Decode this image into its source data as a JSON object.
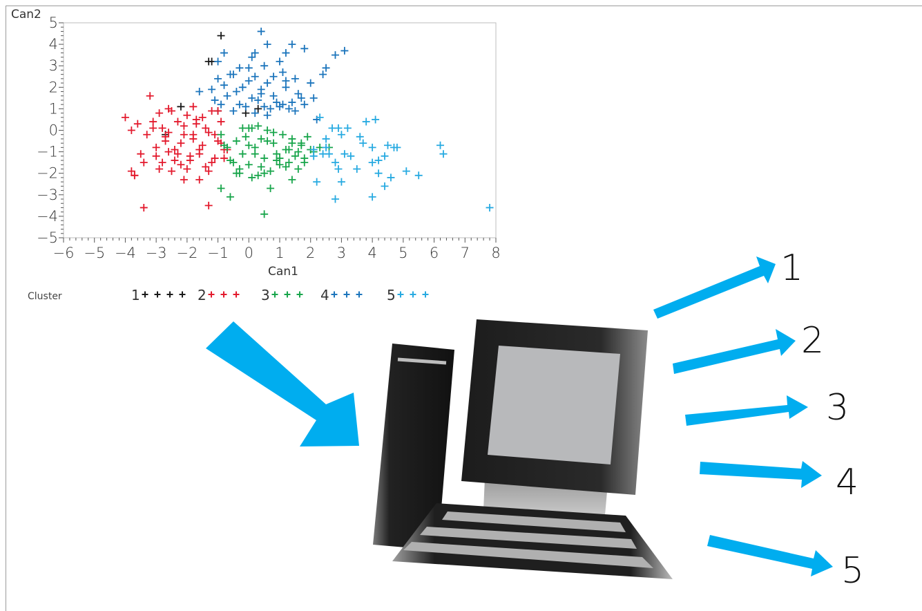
{
  "chart_data": {
    "type": "scatter",
    "xlabel": "Can1",
    "ylabel": "Can2",
    "xlim": [
      -6,
      8
    ],
    "ylim": [
      -5,
      5
    ],
    "xticks": [
      "-6",
      "-5",
      "-4",
      "-3",
      "-2",
      "-1",
      "0",
      "1",
      "2",
      "3",
      "4",
      "5",
      "6",
      "7",
      "8"
    ],
    "yticks": [
      "5",
      "4",
      "3",
      "2",
      "1",
      "0",
      "-1",
      "-2",
      "-3",
      "-4",
      "-5"
    ],
    "marker": "+",
    "legend": {
      "title": "Cluster",
      "placement": "below"
    },
    "series": [
      {
        "name": "1",
        "color": "#1a1a1a",
        "x": [
          -0.9,
          -1.3,
          -1.2,
          -2.2,
          -0.1,
          0.3,
          -1.0,
          -2.7
        ],
        "y": [
          4.4,
          3.2,
          3.2,
          1.1,
          0.8,
          1.0,
          0.9,
          -0.2
        ]
      },
      {
        "name": "2",
        "color": "#e31a2d",
        "x": [
          -4.0,
          -3.8,
          -3.6,
          -3.3,
          -3.1,
          -3.0,
          -2.9,
          -2.8,
          -2.7,
          -2.6,
          -2.5,
          -2.4,
          -2.3,
          -2.2,
          -2.1,
          -2.0,
          -1.9,
          -1.8,
          -1.7,
          -1.6,
          -1.5,
          -1.4,
          -1.3,
          -1.2,
          -1.1,
          -1.0,
          -0.9,
          -0.8,
          -3.7,
          -3.5,
          -3.4,
          -3.2,
          -2.9,
          -2.7,
          -2.5,
          -2.3,
          -2.1,
          -1.9,
          -1.7,
          -1.5,
          -1.3,
          -1.1,
          -0.9,
          -0.7,
          -3.0,
          -2.8,
          -2.6,
          -2.4,
          -2.2,
          -2.0,
          -1.8,
          -1.6,
          -1.4,
          -1.2,
          -1.0,
          -0.8,
          -3.8,
          -3.7,
          -3.4,
          -2.1,
          -1.6,
          -1.3,
          -1.8,
          -3.1,
          -2.6
        ],
        "y": [
          0.6,
          0.0,
          0.3,
          -0.2,
          0.1,
          -0.8,
          0.8,
          0.1,
          -0.3,
          -1.0,
          0.9,
          -1.4,
          0.4,
          -0.6,
          0.2,
          0.7,
          -1.2,
          -0.2,
          0.3,
          -0.9,
          0.6,
          -1.7,
          -0.1,
          0.9,
          -1.3,
          -0.5,
          0.4,
          -0.9,
          -2.1,
          -1.1,
          -1.5,
          1.6,
          -1.8,
          -0.5,
          -1.9,
          -1.1,
          -0.2,
          -1.4,
          0.5,
          -0.7,
          -1.9,
          -0.2,
          -0.6,
          -0.9,
          -1.2,
          -1.5,
          -0.1,
          -0.9,
          -1.6,
          -1.8,
          -0.4,
          -1.1,
          0.1,
          -1.5,
          0.9,
          -1.3,
          -1.9,
          -2.1,
          -3.6,
          -2.3,
          -2.3,
          -3.5,
          1.1,
          0.4,
          1.0
        ]
      },
      {
        "name": "3",
        "color": "#18a54b",
        "x": [
          -0.9,
          -0.7,
          -0.5,
          -0.4,
          -0.3,
          -0.2,
          -0.1,
          0.0,
          0.1,
          0.2,
          0.3,
          0.4,
          0.5,
          0.6,
          0.7,
          0.8,
          0.9,
          1.0,
          1.1,
          1.2,
          1.3,
          1.4,
          1.5,
          1.6,
          1.7,
          1.8,
          1.9,
          2.0,
          -0.6,
          -0.4,
          -0.2,
          0.0,
          0.2,
          0.4,
          0.6,
          0.8,
          1.0,
          1.2,
          1.4,
          1.6,
          1.8,
          2.1,
          2.3,
          2.6,
          -0.8,
          -0.3,
          0.1,
          0.5,
          0.9,
          1.3,
          1.7,
          -0.6,
          0.7,
          1.4,
          0.5,
          -0.9,
          0.0,
          0.3
        ],
        "y": [
          -0.2,
          -0.8,
          -1.5,
          -0.5,
          -1.8,
          -1.1,
          -0.3,
          -1.6,
          0.1,
          -0.8,
          -2.1,
          -0.4,
          -1.3,
          0.0,
          -1.9,
          -0.6,
          -1.1,
          -1.6,
          -0.2,
          -0.9,
          -1.5,
          -0.4,
          -1.2,
          -1.8,
          -0.7,
          -1.3,
          -0.3,
          -0.9,
          -1.4,
          -2.0,
          0.1,
          -0.7,
          -1.1,
          -1.7,
          -0.5,
          -0.1,
          -1.3,
          -1.7,
          -0.6,
          -1.0,
          -1.5,
          -1.0,
          -0.8,
          -0.8,
          -0.7,
          -2.0,
          -2.2,
          -2.0,
          -1.4,
          -0.9,
          -0.6,
          -3.1,
          -2.7,
          -2.3,
          -3.9,
          -2.7,
          0.1,
          0.2
        ]
      },
      {
        "name": "4",
        "color": "#1c75bc",
        "x": [
          0.4,
          -0.8,
          -1.0,
          0.2,
          0.6,
          1.4,
          -0.6,
          0.1,
          0.5,
          1.0,
          1.8,
          2.5,
          2.8,
          3.1,
          -1.0,
          -0.5,
          -0.3,
          0.2,
          0.6,
          1.1,
          1.5,
          2.0,
          2.4,
          -1.2,
          -0.8,
          -0.4,
          0.0,
          0.4,
          0.8,
          1.2,
          1.6,
          2.1,
          -1.6,
          -1.1,
          -0.7,
          -0.3,
          0.1,
          0.5,
          0.9,
          1.3,
          1.7,
          -0.9,
          -0.5,
          -0.1,
          0.3,
          0.7,
          1.1,
          1.5,
          0.2,
          0.6,
          1.0,
          1.4,
          1.8,
          -0.2,
          0.4,
          1.2,
          2.2,
          0.0,
          0.8,
          1.2
        ],
        "y": [
          4.6,
          3.6,
          3.2,
          3.6,
          4.0,
          4.0,
          2.6,
          3.4,
          3.0,
          3.2,
          3.8,
          2.9,
          3.5,
          3.7,
          2.4,
          2.6,
          2.9,
          2.5,
          2.2,
          2.7,
          2.4,
          2.2,
          2.6,
          1.9,
          2.1,
          1.8,
          2.3,
          1.9,
          1.6,
          2.0,
          1.7,
          1.5,
          1.8,
          1.4,
          1.6,
          1.2,
          1.5,
          1.1,
          1.3,
          1.0,
          1.5,
          1.2,
          0.9,
          1.1,
          1.4,
          1.0,
          1.2,
          0.9,
          0.8,
          0.7,
          1.1,
          1.3,
          1.2,
          2.0,
          1.7,
          2.3,
          0.5,
          2.9,
          2.5,
          3.6
        ]
      },
      {
        "name": "5",
        "color": "#27aae1",
        "x": [
          2.3,
          2.5,
          2.7,
          2.9,
          3.1,
          3.3,
          3.6,
          3.8,
          4.0,
          4.2,
          4.4,
          4.6,
          4.8,
          5.1,
          5.5,
          2.4,
          2.8,
          3.2,
          3.7,
          4.1,
          4.5,
          2.2,
          2.6,
          3.0,
          3.5,
          4.0,
          4.4,
          4.7,
          6.2,
          6.3,
          7.8,
          2.1,
          2.8,
          2.1,
          2.5,
          3.0,
          2.9,
          4.0,
          4.2
        ],
        "y": [
          0.6,
          -0.8,
          0.1,
          -1.8,
          -1.1,
          -1.2,
          -0.3,
          0.4,
          -0.8,
          -1.4,
          -1.2,
          -2.2,
          -0.8,
          -1.9,
          -2.1,
          -1.1,
          -1.5,
          0.1,
          -0.6,
          0.5,
          -0.7,
          -2.4,
          -1.1,
          -2.4,
          -1.8,
          -3.1,
          -2.6,
          -0.8,
          -0.7,
          -1.1,
          -3.6,
          -1.2,
          -3.2,
          -0.9,
          -0.4,
          -0.2,
          0.1,
          -1.5,
          -2.0
        ]
      }
    ]
  },
  "output_labels": [
    "1",
    "2",
    "3",
    "4",
    "5"
  ]
}
